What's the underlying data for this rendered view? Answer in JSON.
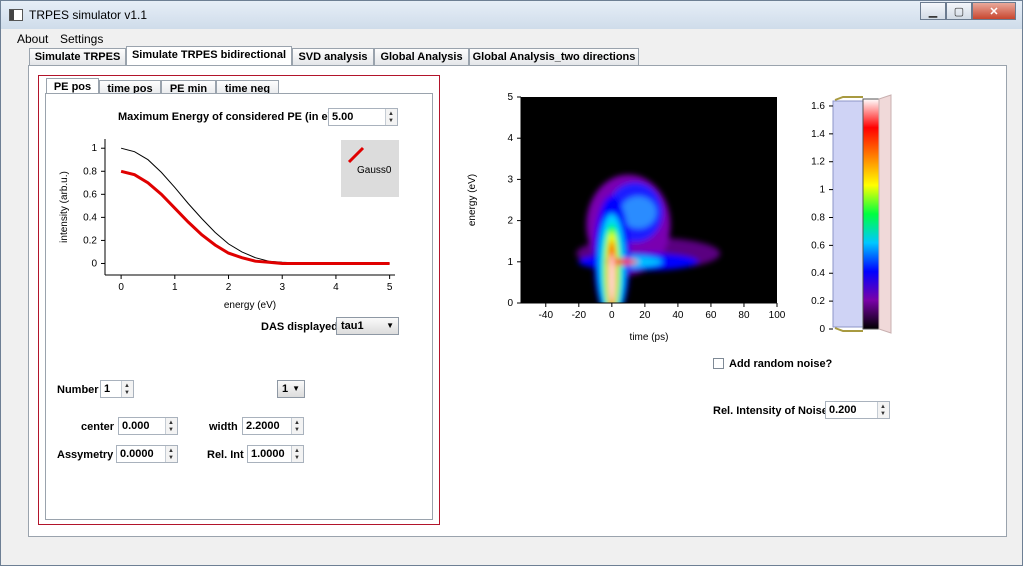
{
  "window": {
    "title": "TRPES simulator v1.1",
    "buttons": {
      "minimize": "▁",
      "maximize": "▢",
      "close": "✕"
    }
  },
  "menu": [
    "About",
    "Settings"
  ],
  "outer_tabs": [
    {
      "label": "Simulate TRPES"
    },
    {
      "label": "Simulate TRPES bidirectional",
      "active": true
    },
    {
      "label": "SVD analysis"
    },
    {
      "label": "Global Analysis"
    },
    {
      "label": "Global Analysis_two directions"
    }
  ],
  "inner_tabs": [
    {
      "label": "PE pos",
      "active": true
    },
    {
      "label": "time pos"
    },
    {
      "label": "PE min"
    },
    {
      "label": "time neg"
    }
  ],
  "left": {
    "max_energy_label": "Maximum Energy of considered PE (in eV)",
    "max_energy_value": "5.00",
    "das_label": "DAS displayed",
    "das_value": "tau1",
    "number_label": "Number",
    "number_value": "1",
    "index_value": "1",
    "center_label": "center",
    "center_value": "0.000",
    "width_label": "width",
    "width_value": "2.2000",
    "asym_label": "Assymetry",
    "asym_value": "0.0000",
    "relint_label": "Rel. Int",
    "relint_value": "1.0000"
  },
  "right": {
    "noise_label": "Add random noise?",
    "noise_checked": false,
    "noise_intensity_label": "Rel. Intensity of Noise",
    "noise_intensity_value": "0.200"
  },
  "chart_data": [
    {
      "type": "line",
      "xlabel": "energy (eV)",
      "ylabel": "intensity (arb.u.)",
      "xlim": [
        -0.3,
        5.1
      ],
      "ylim": [
        -0.1,
        1.08
      ],
      "xticks": [
        0,
        1,
        2,
        3,
        4,
        5
      ],
      "yticks": [
        0,
        0.2,
        0.4,
        0.6,
        0.8,
        1
      ],
      "legend": {
        "placement": "top-right",
        "entries": [
          "Gauss0"
        ]
      },
      "series": [
        {
          "color": "#000000",
          "x": [
            0,
            0.25,
            0.5,
            0.75,
            1,
            1.25,
            1.5,
            1.75,
            2,
            2.25,
            2.5,
            2.75,
            3,
            3.5,
            4,
            4.5,
            5
          ],
          "y": [
            1.0,
            0.97,
            0.9,
            0.79,
            0.66,
            0.52,
            0.39,
            0.27,
            0.17,
            0.1,
            0.05,
            0.02,
            0.01,
            0,
            0,
            0,
            0
          ]
        },
        {
          "name": "Gauss0",
          "color": "#e00000",
          "x": [
            0,
            0.25,
            0.5,
            0.75,
            1,
            1.25,
            1.5,
            1.75,
            2,
            2.25,
            2.5,
            2.75,
            3,
            3.5,
            4,
            4.5,
            5
          ],
          "y": [
            0.8,
            0.77,
            0.7,
            0.6,
            0.48,
            0.36,
            0.25,
            0.16,
            0.09,
            0.05,
            0.02,
            0.01,
            0,
            0,
            0,
            0,
            0
          ]
        }
      ]
    },
    {
      "type": "heatmap",
      "xlabel": "time (ps)",
      "ylabel": "energy (eV)",
      "xlim": [
        -55,
        100
      ],
      "ylim": [
        0,
        5
      ],
      "xticks": [
        -40,
        -20,
        0,
        20,
        40,
        60,
        80,
        100
      ],
      "yticks": [
        0,
        1,
        2,
        3,
        4,
        5
      ],
      "colorbar": {
        "range": [
          0,
          1.65
        ],
        "ticks": [
          0,
          0.2,
          0.4,
          0.6,
          0.8,
          1,
          1.2,
          1.4,
          1.6
        ],
        "colors": [
          "#000000",
          "#7a00a8",
          "#0000ff",
          "#00c8ff",
          "#00ff40",
          "#ffff00",
          "#ff8000",
          "#ff0000",
          "#ffffff"
        ]
      }
    }
  ]
}
